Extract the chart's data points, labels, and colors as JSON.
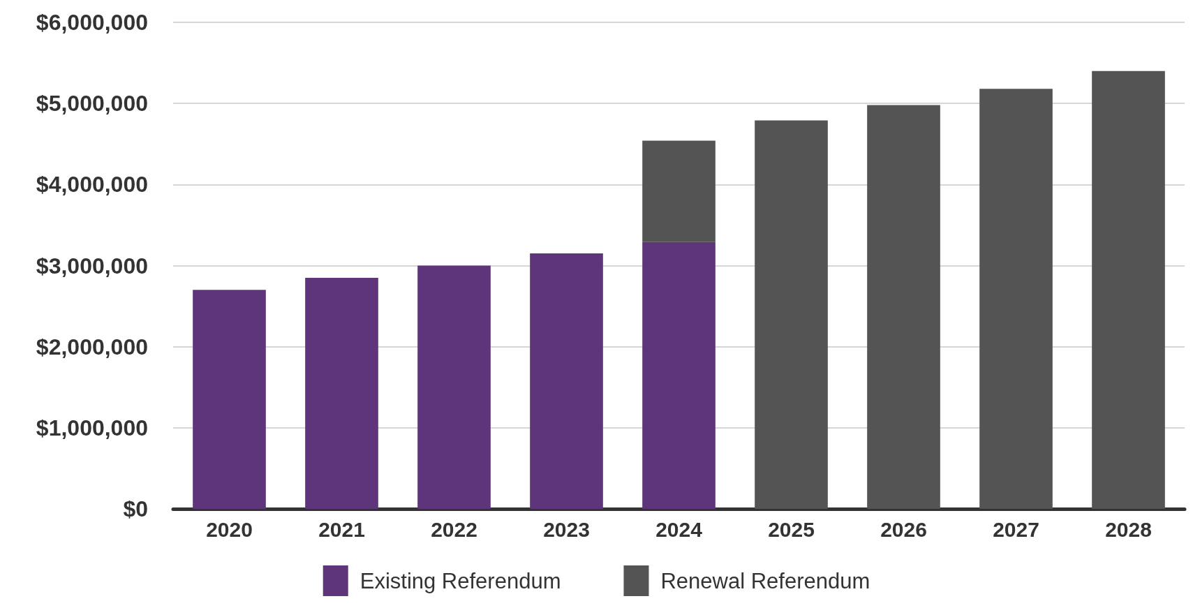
{
  "chart_data": {
    "type": "bar",
    "stacked": true,
    "categories": [
      "2020",
      "2021",
      "2022",
      "2023",
      "2024",
      "2025",
      "2026",
      "2027",
      "2028"
    ],
    "series": [
      {
        "name": "Existing Referendum",
        "color": "#5e357a",
        "values": [
          2700000,
          2850000,
          3000000,
          3150000,
          3290000,
          null,
          null,
          null,
          null
        ]
      },
      {
        "name": "Renewal Referendum",
        "color": "#545454",
        "values": [
          null,
          null,
          null,
          null,
          1250000,
          4790000,
          4980000,
          5180000,
          5400000
        ]
      }
    ],
    "ylim": [
      0,
      6000000
    ],
    "yticks": [
      {
        "value": 0,
        "label": "$0"
      },
      {
        "value": 1000000,
        "label": "$1,000,000"
      },
      {
        "value": 2000000,
        "label": "$2,000,000"
      },
      {
        "value": 3000000,
        "label": "$3,000,000"
      },
      {
        "value": 4000000,
        "label": "$4,000,000"
      },
      {
        "value": 5000000,
        "label": "$5,000,000"
      },
      {
        "value": 6000000,
        "label": "$6,000,000"
      }
    ],
    "grid": "y",
    "legend": "bottom"
  }
}
